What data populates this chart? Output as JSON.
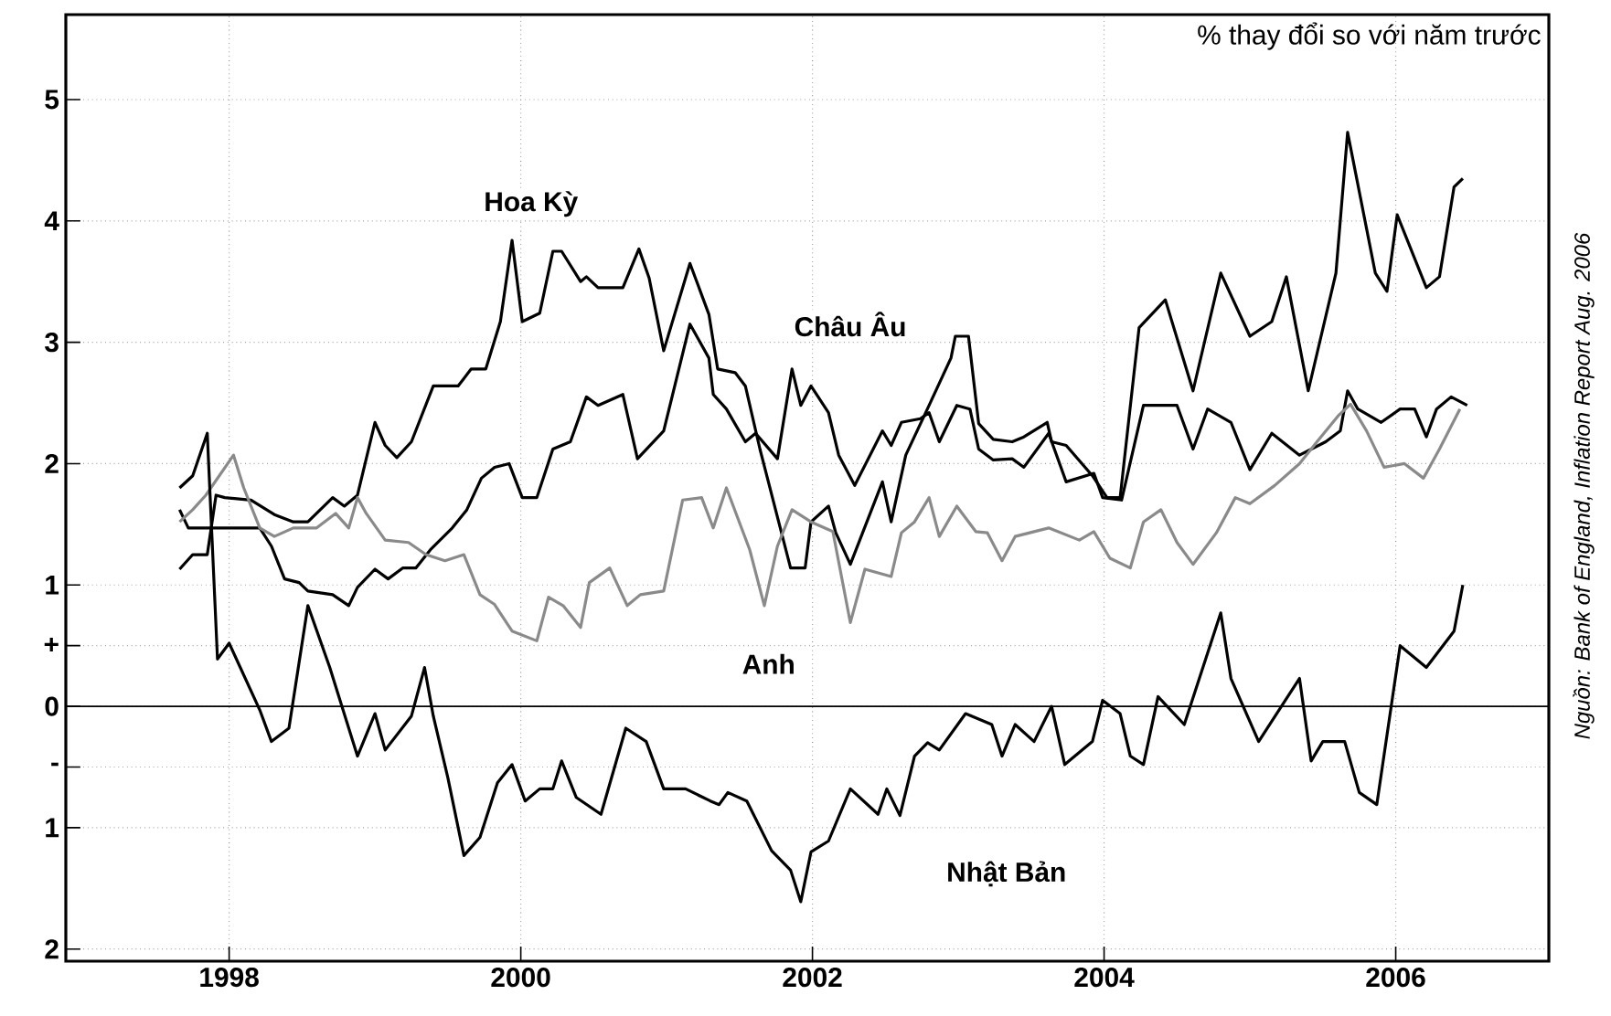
{
  "chart_data": {
    "type": "line",
    "title": "% thay đổi so với năm trước",
    "annotations": [
      "Nguồn: Bank of England, Inflation Report Aug. 2006"
    ],
    "xlim": [
      1996.88,
      2007.05
    ],
    "ylim": [
      -2.1,
      5.7
    ],
    "xticks": [
      1998,
      2000,
      2002,
      2004,
      2006
    ],
    "yticks": [
      {
        "value": -2,
        "label": "2"
      },
      {
        "value": -1,
        "label": "1"
      },
      {
        "value": -0.5,
        "label": "-"
      },
      0,
      {
        "value": 0.5,
        "label": "+"
      },
      1,
      2,
      3,
      4,
      5
    ],
    "grid": true,
    "legend": false,
    "marker": "none",
    "line_style": "solid",
    "ref_lines": [
      {
        "axis": "y",
        "value": 0,
        "color": "#000000"
      }
    ],
    "series": [
      {
        "name": "Hoa Kỳ",
        "color": "#000000",
        "x": [
          1997.66,
          1997.75,
          1997.85,
          1997.91,
          1997.97,
          1998.15,
          1998.31,
          1998.44,
          1998.54,
          1998.71,
          1998.79,
          1998.88,
          1999.0,
          1999.07,
          1999.15,
          1999.25,
          1999.4,
          1999.57,
          1999.66,
          1999.76,
          1999.86,
          1999.94,
          2000.01,
          2000.13,
          2000.22,
          2000.28,
          2000.41,
          2000.45,
          2000.53,
          2000.7,
          2000.81,
          2000.88,
          2000.98,
          2001.16,
          2001.29,
          2001.35,
          2001.47,
          2001.54,
          2001.64,
          2001.85,
          2001.95,
          2001.99,
          2002.11,
          2002.16,
          2002.26,
          2002.48,
          2002.54,
          2002.64,
          2002.8,
          2002.95,
          2002.98,
          2003.07,
          2003.14,
          2003.24,
          2003.37,
          2003.45,
          2003.61,
          2003.64,
          2003.74,
          2003.92,
          2004.02,
          2004.11,
          2004.24,
          2004.42,
          2004.61,
          2004.8,
          2005.0,
          2005.15,
          2005.25,
          2005.4,
          2005.59,
          2005.67,
          2005.86,
          2005.94,
          2006.01,
          2006.21,
          2006.3,
          2006.4,
          2006.46
        ],
        "values": [
          1.13,
          1.25,
          1.25,
          1.74,
          1.72,
          1.7,
          1.58,
          1.52,
          1.52,
          1.72,
          1.65,
          1.74,
          2.34,
          2.15,
          2.05,
          2.18,
          2.64,
          2.64,
          2.78,
          2.78,
          3.17,
          3.84,
          3.17,
          3.24,
          3.75,
          3.75,
          3.5,
          3.54,
          3.45,
          3.45,
          3.77,
          3.53,
          2.93,
          3.65,
          3.23,
          2.78,
          2.75,
          2.64,
          2.12,
          1.14,
          1.14,
          1.52,
          1.65,
          1.43,
          1.17,
          1.85,
          1.52,
          2.07,
          2.48,
          2.87,
          3.05,
          3.05,
          2.33,
          2.2,
          2.18,
          2.22,
          2.34,
          2.18,
          2.15,
          1.9,
          1.72,
          1.72,
          3.12,
          3.35,
          2.6,
          3.57,
          3.05,
          3.17,
          3.54,
          2.6,
          3.57,
          4.73,
          3.57,
          3.42,
          4.05,
          3.45,
          3.54,
          4.28,
          4.35
        ]
      },
      {
        "name": "Châu Âu",
        "color": "#000000",
        "x": [
          1997.66,
          1997.72,
          1997.9,
          1998.04,
          1998.21,
          1998.29,
          1998.38,
          1998.48,
          1998.54,
          1998.71,
          1998.82,
          1998.88,
          1999.0,
          1999.09,
          1999.19,
          1999.28,
          1999.38,
          1999.53,
          1999.63,
          1999.73,
          1999.82,
          1999.92,
          2000.01,
          2000.11,
          2000.22,
          2000.34,
          2000.45,
          2000.53,
          2000.7,
          2000.8,
          2000.98,
          2001.16,
          2001.29,
          2001.32,
          2001.41,
          2001.54,
          2001.61,
          2001.76,
          2001.86,
          2001.92,
          2001.99,
          2002.11,
          2002.18,
          2002.29,
          2002.48,
          2002.54,
          2002.61,
          2002.74,
          2002.8,
          2002.87,
          2002.99,
          2003.08,
          2003.14,
          2003.24,
          2003.37,
          2003.45,
          2003.62,
          2003.74,
          2003.93,
          2003.99,
          2004.12,
          2004.27,
          2004.5,
          2004.61,
          2004.71,
          2004.87,
          2005.0,
          2005.15,
          2005.34,
          2005.52,
          2005.62,
          2005.67,
          2005.74,
          2005.9,
          2006.03,
          2006.13,
          2006.21,
          2006.28,
          2006.38,
          2006.49
        ],
        "values": [
          1.62,
          1.47,
          1.47,
          1.47,
          1.47,
          1.32,
          1.05,
          1.02,
          0.95,
          0.92,
          0.83,
          0.98,
          1.13,
          1.05,
          1.14,
          1.14,
          1.29,
          1.47,
          1.62,
          1.88,
          1.97,
          2.0,
          1.72,
          1.72,
          2.12,
          2.18,
          2.55,
          2.48,
          2.57,
          2.04,
          2.27,
          3.15,
          2.87,
          2.57,
          2.45,
          2.18,
          2.25,
          2.04,
          2.78,
          2.48,
          2.64,
          2.42,
          2.07,
          1.82,
          2.27,
          2.15,
          2.34,
          2.37,
          2.42,
          2.18,
          2.48,
          2.45,
          2.12,
          2.03,
          2.04,
          1.97,
          2.25,
          1.85,
          1.92,
          1.72,
          1.7,
          2.48,
          2.48,
          2.12,
          2.45,
          2.34,
          1.95,
          2.25,
          2.07,
          2.18,
          2.27,
          2.6,
          2.45,
          2.34,
          2.45,
          2.45,
          2.22,
          2.45,
          2.55,
          2.48
        ]
      },
      {
        "name": "Anh",
        "color": "#8a8a8a",
        "x": [
          1997.66,
          1997.75,
          1997.84,
          1998.03,
          1998.1,
          1998.21,
          1998.31,
          1998.44,
          1998.6,
          1998.73,
          1998.82,
          1998.88,
          1998.94,
          1999.07,
          1999.23,
          1999.35,
          1999.48,
          1999.61,
          1999.72,
          1999.82,
          1999.94,
          2000.11,
          2000.19,
          2000.29,
          2000.41,
          2000.47,
          2000.61,
          2000.73,
          2000.82,
          2000.98,
          2001.11,
          2001.24,
          2001.32,
          2001.41,
          2001.57,
          2001.67,
          2001.76,
          2001.86,
          2001.99,
          2002.14,
          2002.26,
          2002.36,
          2002.54,
          2002.61,
          2002.7,
          2002.8,
          2002.87,
          2002.99,
          2003.12,
          2003.2,
          2003.3,
          2003.39,
          2003.62,
          2003.83,
          2003.93,
          2004.04,
          2004.18,
          2004.27,
          2004.39,
          2004.5,
          2004.61,
          2004.77,
          2004.9,
          2005.0,
          2005.17,
          2005.34,
          2005.46,
          2005.61,
          2005.69,
          2005.8,
          2005.92,
          2006.06,
          2006.19,
          2006.3,
          2006.44
        ],
        "values": [
          1.52,
          1.62,
          1.74,
          2.07,
          1.8,
          1.47,
          1.4,
          1.47,
          1.47,
          1.59,
          1.47,
          1.72,
          1.59,
          1.37,
          1.35,
          1.25,
          1.2,
          1.25,
          0.92,
          0.84,
          0.62,
          0.54,
          0.9,
          0.83,
          0.65,
          1.02,
          1.14,
          0.83,
          0.92,
          0.95,
          1.7,
          1.72,
          1.47,
          1.8,
          1.29,
          0.83,
          1.32,
          1.62,
          1.52,
          1.44,
          0.69,
          1.13,
          1.07,
          1.43,
          1.52,
          1.72,
          1.4,
          1.65,
          1.44,
          1.43,
          1.2,
          1.4,
          1.47,
          1.37,
          1.44,
          1.22,
          1.14,
          1.52,
          1.62,
          1.35,
          1.17,
          1.43,
          1.72,
          1.67,
          1.82,
          2.0,
          2.18,
          2.4,
          2.49,
          2.27,
          1.97,
          2.0,
          1.88,
          2.12,
          2.45
        ]
      },
      {
        "name": "Nhật Bản",
        "color": "#000000",
        "x": [
          1997.66,
          1997.75,
          1997.85,
          1997.92,
          1998.0,
          1998.21,
          1998.29,
          1998.41,
          1998.54,
          1998.69,
          1998.88,
          1999.0,
          1999.07,
          1999.25,
          1999.34,
          1999.4,
          1999.5,
          1999.61,
          1999.72,
          1999.84,
          1999.94,
          2000.03,
          2000.13,
          2000.22,
          2000.28,
          2000.38,
          2000.55,
          2000.72,
          2000.86,
          2000.98,
          2001.13,
          2001.3,
          2001.36,
          2001.42,
          2001.55,
          2001.72,
          2001.85,
          2001.92,
          2001.99,
          2002.11,
          2002.26,
          2002.45,
          2002.51,
          2002.6,
          2002.7,
          2002.79,
          2002.87,
          2003.05,
          2003.23,
          2003.3,
          2003.39,
          2003.52,
          2003.64,
          2003.73,
          2003.92,
          2003.99,
          2004.11,
          2004.18,
          2004.27,
          2004.37,
          2004.55,
          2004.8,
          2004.87,
          2005.06,
          2005.34,
          2005.42,
          2005.5,
          2005.65,
          2005.75,
          2005.87,
          2006.03,
          2006.21,
          2006.4,
          2006.46
        ],
        "values": [
          1.8,
          1.9,
          2.25,
          0.39,
          0.52,
          -0.03,
          -0.29,
          -0.18,
          0.83,
          0.32,
          -0.41,
          -0.06,
          -0.36,
          -0.08,
          0.32,
          -0.08,
          -0.59,
          -1.23,
          -1.08,
          -0.63,
          -0.48,
          -0.78,
          -0.68,
          -0.68,
          -0.45,
          -0.75,
          -0.89,
          -0.18,
          -0.29,
          -0.68,
          -0.68,
          -0.78,
          -0.81,
          -0.71,
          -0.78,
          -1.19,
          -1.35,
          -1.61,
          -1.2,
          -1.11,
          -0.68,
          -0.89,
          -0.68,
          -0.9,
          -0.41,
          -0.3,
          -0.36,
          -0.06,
          -0.15,
          -0.41,
          -0.15,
          -0.29,
          0.0,
          -0.48,
          -0.29,
          0.05,
          -0.06,
          -0.41,
          -0.48,
          0.08,
          -0.15,
          0.77,
          0.23,
          -0.29,
          0.23,
          -0.45,
          -0.29,
          -0.29,
          -0.71,
          -0.81,
          0.5,
          0.32,
          0.62,
          1.0
        ]
      }
    ]
  }
}
